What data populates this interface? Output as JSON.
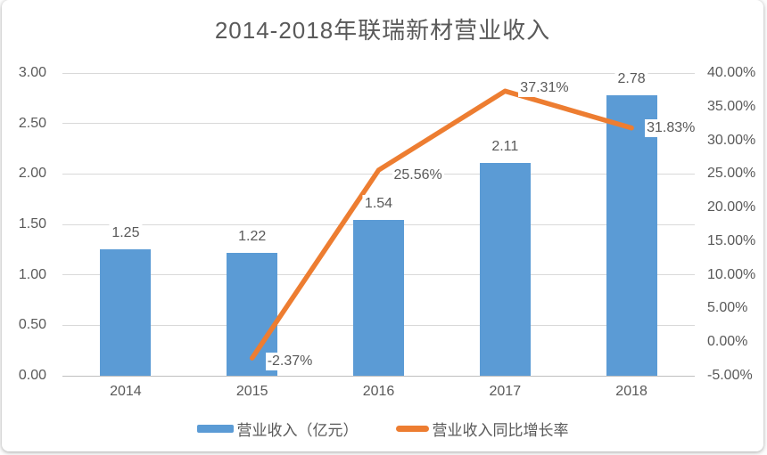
{
  "title": "2014-2018年联瑞新材营业收入",
  "chart_data": {
    "type": "bar",
    "subtype": "combo-bar-line",
    "title": "2014-2018年联瑞新材营业收入",
    "categories": [
      "2014",
      "2015",
      "2016",
      "2017",
      "2018"
    ],
    "series": [
      {
        "name": "营业收入（亿元）",
        "kind": "bar",
        "axis": "left",
        "color": "#5B9BD5",
        "values": [
          1.25,
          1.22,
          1.54,
          2.11,
          2.78
        ],
        "labels": [
          "1.25",
          "1.22",
          "1.54",
          "2.11",
          "2.78"
        ]
      },
      {
        "name": "营业收入同比增长率",
        "kind": "line",
        "axis": "right",
        "color": "#ED7D31",
        "values": [
          null,
          -2.37,
          25.56,
          37.31,
          31.83
        ],
        "labels": [
          null,
          "-2.37%",
          "25.56%",
          "37.31%",
          "31.83%"
        ]
      }
    ],
    "left_axis": {
      "min": 0,
      "max": 3,
      "step": 0.5,
      "tick_labels": [
        "0.00",
        "0.50",
        "1.00",
        "1.50",
        "2.00",
        "2.50",
        "3.00"
      ]
    },
    "right_axis": {
      "min": -5,
      "max": 40,
      "step": 5,
      "tick_labels": [
        "-5.00%",
        "0.00%",
        "5.00%",
        "10.00%",
        "15.00%",
        "20.00%",
        "25.00%",
        "30.00%",
        "35.00%",
        "40.00%"
      ]
    },
    "grid": true,
    "legend_position": "bottom",
    "colors": {
      "bar": "#5B9BD5",
      "line": "#ED7D31",
      "grid": "#D9D9D9",
      "axis": "#BFBFBF",
      "text": "#595959"
    }
  }
}
